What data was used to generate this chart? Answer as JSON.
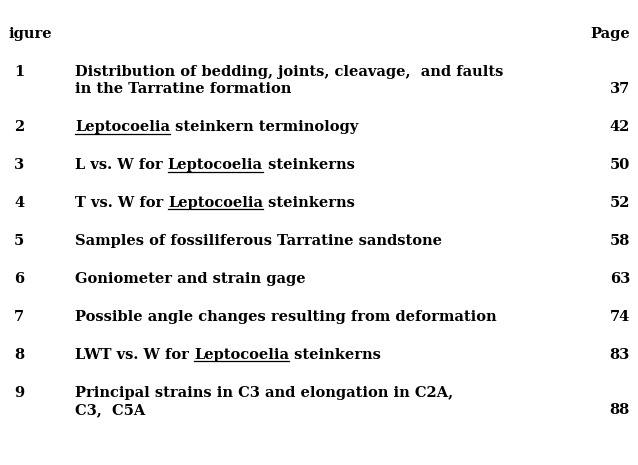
{
  "background_color": "#ffffff",
  "text_color": "#000000",
  "fig_width": 6.38,
  "fig_height": 4.65,
  "dpi": 100,
  "header_figure": "igure",
  "header_page": "Page",
  "entries": [
    {
      "num": "1",
      "lines": [
        [
          {
            "text": "Distribution of bedding, joints, cleavage,  and faults",
            "ul": false
          }
        ],
        [
          {
            "text": "in the Tarratine formation",
            "ul": false
          }
        ]
      ],
      "page": "37",
      "page_on_line": 1
    },
    {
      "num": "2",
      "lines": [
        [
          {
            "text": "Leptocoelia",
            "ul": true
          },
          {
            "text": " steinkern terminology",
            "ul": false
          }
        ]
      ],
      "page": "42",
      "page_on_line": 0
    },
    {
      "num": "3",
      "lines": [
        [
          {
            "text": "L vs. W for ",
            "ul": false
          },
          {
            "text": "Leptocoelia",
            "ul": true
          },
          {
            "text": " steinkerns",
            "ul": false
          }
        ]
      ],
      "page": "50",
      "page_on_line": 0
    },
    {
      "num": "4",
      "lines": [
        [
          {
            "text": "T vs. W for ",
            "ul": false
          },
          {
            "text": "Leptocoelia",
            "ul": true
          },
          {
            "text": " steinkerns",
            "ul": false
          }
        ]
      ],
      "page": "52",
      "page_on_line": 0
    },
    {
      "num": "5",
      "lines": [
        [
          {
            "text": "Samples of fossiliferous Tarratine sandstone",
            "ul": false
          }
        ]
      ],
      "page": "58",
      "page_on_line": 0
    },
    {
      "num": "6",
      "lines": [
        [
          {
            "text": "Goniometer and strain gage",
            "ul": false
          }
        ]
      ],
      "page": "63",
      "page_on_line": 0
    },
    {
      "num": "7",
      "lines": [
        [
          {
            "text": "Possible angle changes resulting from deformation",
            "ul": false
          }
        ]
      ],
      "page": "74",
      "page_on_line": 0
    },
    {
      "num": "8",
      "lines": [
        [
          {
            "text": "LWT vs. W for ",
            "ul": false
          },
          {
            "text": "Leptocoelia",
            "ul": true
          },
          {
            "text": " steinkerns",
            "ul": false
          }
        ]
      ],
      "page": "83",
      "page_on_line": 0
    },
    {
      "num": "9",
      "lines": [
        [
          {
            "text": "Principal strains in C3 and elongation in C2A,",
            "ul": false
          }
        ],
        [
          {
            "text": "C3,  C5A",
            "ul": false
          }
        ]
      ],
      "page": "88",
      "page_on_line": 1
    }
  ]
}
